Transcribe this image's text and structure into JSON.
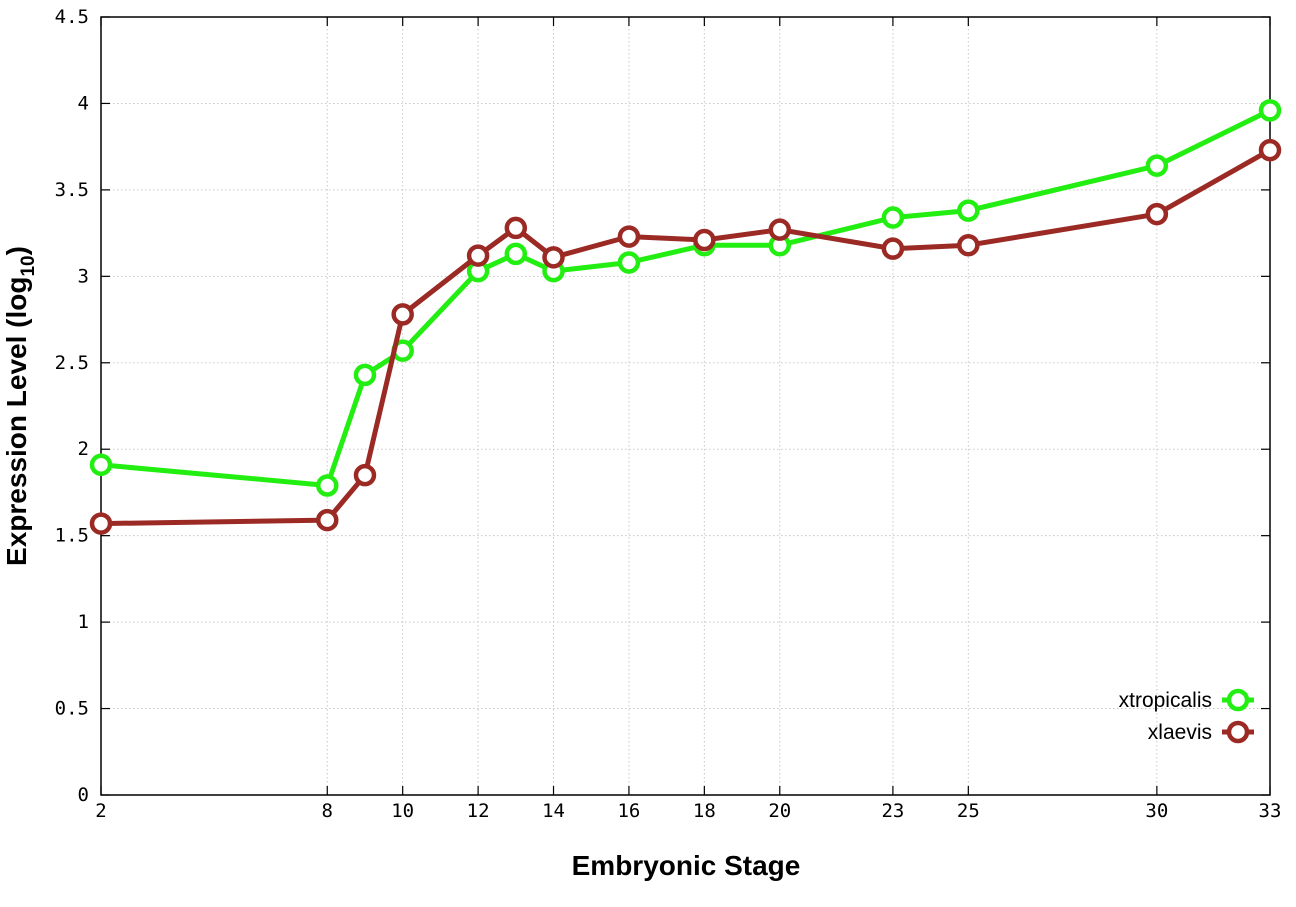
{
  "chart_data": {
    "type": "line",
    "xlabel": "Embryonic Stage",
    "ylabel_main": "Expression Level (log",
    "ylabel_sub": "10",
    "ylabel_close": ")",
    "xlim": [
      2,
      33
    ],
    "ylim": [
      0,
      4.5
    ],
    "xticks": [
      2,
      8,
      10,
      12,
      14,
      16,
      18,
      20,
      23,
      25,
      30,
      33
    ],
    "yticks": [
      0,
      0.5,
      1,
      1.5,
      2,
      2.5,
      3,
      3.5,
      4,
      4.5
    ],
    "ytick_labels": [
      "0",
      "0.5",
      "1",
      "1.5",
      "2",
      "2.5",
      "3",
      "3.5",
      "4",
      "4.5"
    ],
    "grid": true,
    "legend_position": "bottom-right",
    "series": [
      {
        "name": "xtropicalis",
        "color": "#22ee11",
        "x": [
          2,
          8,
          9,
          10,
          12,
          13,
          14,
          16,
          18,
          20,
          23,
          25,
          30,
          33
        ],
        "y": [
          1.91,
          1.79,
          2.43,
          2.57,
          3.03,
          3.13,
          3.03,
          3.08,
          3.18,
          3.18,
          3.34,
          3.38,
          3.64,
          3.96
        ]
      },
      {
        "name": "xlaevis",
        "color": "#9b2a25",
        "x": [
          2,
          8,
          9,
          10,
          12,
          13,
          14,
          16,
          18,
          20,
          23,
          25,
          30,
          33
        ],
        "y": [
          1.57,
          1.59,
          1.85,
          2.78,
          3.12,
          3.28,
          3.11,
          3.23,
          3.21,
          3.27,
          3.16,
          3.18,
          3.36,
          3.73
        ]
      }
    ]
  }
}
